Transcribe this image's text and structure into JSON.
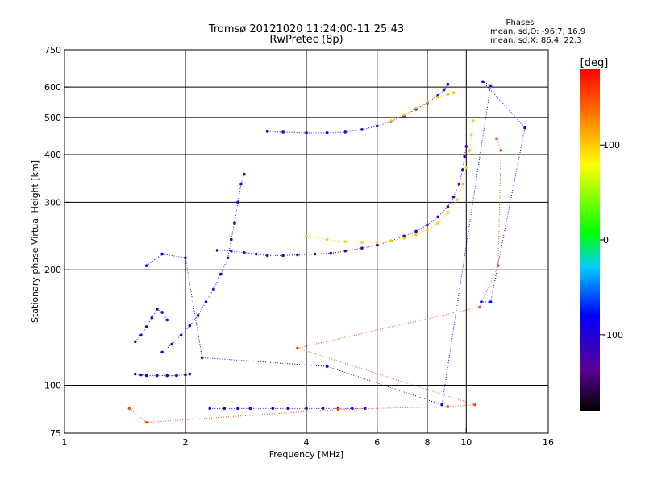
{
  "chart_data": {
    "type": "scatter",
    "title": "Tromsø 20121020 11:24:00-11:25:43",
    "subtitle": "RwPretec (8p)",
    "xlabel": "Frequency [MHz]",
    "ylabel": "Stationary phase Virtual Height [km]",
    "x_scale": "log2",
    "y_scale": "log",
    "xlim": [
      1,
      16
    ],
    "ylim": [
      75,
      750
    ],
    "x_ticks": [
      1,
      2,
      4,
      6,
      8,
      10,
      16
    ],
    "y_ticks": [
      75,
      100,
      200,
      300,
      400,
      500,
      600,
      750
    ],
    "grid": true,
    "stats": {
      "heading": "Phases",
      "o_line": "mean, sd,O:  -96.7, 16.9",
      "x_line": "mean, sd,X:  86.4, 22.3"
    },
    "colorbar": {
      "label": "[deg]",
      "range": [
        -180,
        180
      ],
      "ticks": [
        100,
        0,
        -100
      ]
    },
    "traces": [
      {
        "phase": -100,
        "points": [
          [
            1.5,
            107
          ],
          [
            1.55,
            106.5
          ],
          [
            1.6,
            106
          ],
          [
            1.7,
            106
          ],
          [
            1.8,
            106
          ],
          [
            1.9,
            106
          ],
          [
            2.0,
            106.5
          ],
          [
            2.05,
            107
          ]
        ]
      },
      {
        "phase": -105,
        "points": [
          [
            1.5,
            130
          ],
          [
            1.55,
            135
          ],
          [
            1.6,
            142
          ],
          [
            1.65,
            150
          ],
          [
            1.7,
            158
          ],
          [
            1.75,
            155
          ],
          [
            1.8,
            148
          ]
        ]
      },
      {
        "phase": -100,
        "points": [
          [
            1.75,
            122
          ],
          [
            1.85,
            128
          ],
          [
            1.95,
            135
          ],
          [
            2.05,
            143
          ],
          [
            2.15,
            152
          ],
          [
            2.25,
            165
          ],
          [
            2.35,
            178
          ],
          [
            2.45,
            195
          ],
          [
            2.55,
            215
          ],
          [
            2.6,
            240
          ],
          [
            2.65,
            265
          ],
          [
            2.7,
            300
          ],
          [
            2.75,
            335
          ],
          [
            2.8,
            355
          ]
        ]
      },
      {
        "phase": -115,
        "points": [
          [
            2.4,
            225
          ],
          [
            2.6,
            224
          ],
          [
            2.8,
            222
          ],
          [
            3.0,
            220
          ],
          [
            3.2,
            218
          ],
          [
            3.5,
            218
          ],
          [
            3.8,
            219
          ],
          [
            4.2,
            220
          ],
          [
            4.6,
            221
          ],
          [
            5.0,
            224
          ],
          [
            5.5,
            228
          ],
          [
            6.0,
            232
          ],
          [
            6.5,
            238
          ],
          [
            7.0,
            245
          ],
          [
            7.5,
            252
          ],
          [
            8.0,
            262
          ],
          [
            8.5,
            275
          ],
          [
            9.0,
            292
          ],
          [
            9.3,
            310
          ],
          [
            9.6,
            335
          ],
          [
            9.8,
            365
          ],
          [
            9.9,
            395
          ],
          [
            10.0,
            420
          ]
        ]
      },
      {
        "phase": 100,
        "points": [
          [
            4.0,
            245
          ],
          [
            4.5,
            240
          ],
          [
            5.0,
            237
          ],
          [
            5.5,
            236
          ],
          [
            6.0,
            236
          ],
          [
            6.5,
            238
          ],
          [
            7.0,
            242
          ],
          [
            7.5,
            247
          ],
          [
            8.0,
            254
          ],
          [
            8.5,
            265
          ],
          [
            9.0,
            282
          ],
          [
            9.5,
            305
          ],
          [
            9.8,
            335
          ],
          [
            10.0,
            370
          ],
          [
            10.2,
            410
          ],
          [
            10.3,
            450
          ],
          [
            10.4,
            490
          ]
        ]
      },
      {
        "phase": -100,
        "points": [
          [
            3.2,
            460
          ],
          [
            3.5,
            458
          ],
          [
            4.0,
            456
          ],
          [
            4.5,
            456
          ],
          [
            5.0,
            458
          ],
          [
            5.5,
            465
          ],
          [
            6.0,
            475
          ],
          [
            6.5,
            488
          ],
          [
            7.0,
            505
          ],
          [
            7.5,
            525
          ],
          [
            8.0,
            545
          ],
          [
            8.5,
            570
          ],
          [
            8.8,
            590
          ],
          [
            9.0,
            610
          ]
        ]
      },
      {
        "phase": 105,
        "points": [
          [
            6.5,
            490
          ],
          [
            7.0,
            508
          ],
          [
            7.5,
            528
          ],
          [
            8.0,
            548
          ],
          [
            8.5,
            565
          ],
          [
            9.0,
            575
          ],
          [
            9.3,
            580
          ]
        ]
      },
      {
        "phase": -100,
        "points": [
          [
            2.3,
            87
          ],
          [
            2.5,
            87
          ],
          [
            2.7,
            87
          ],
          [
            2.9,
            87
          ],
          [
            3.3,
            87
          ],
          [
            3.6,
            87
          ],
          [
            4.0,
            87
          ],
          [
            4.4,
            87
          ],
          [
            4.8,
            87
          ],
          [
            5.2,
            87
          ],
          [
            5.6,
            87
          ]
        ]
      },
      {
        "phase": 150,
        "points": [
          [
            1.45,
            87
          ],
          [
            1.6,
            80
          ],
          [
            4.8,
            86.5
          ],
          [
            9.0,
            88
          ],
          [
            10.5,
            89
          ],
          [
            3.8,
            125
          ],
          [
            10.8,
            160
          ],
          [
            12.0,
            205
          ],
          [
            12.2,
            410
          ],
          [
            11.9,
            440
          ]
        ]
      },
      {
        "phase": -80,
        "points": [
          [
            1.6,
            205
          ],
          [
            1.75,
            220
          ],
          [
            2.0,
            215
          ],
          [
            2.2,
            118
          ],
          [
            4.5,
            112
          ],
          [
            8.7,
            89
          ],
          [
            11.5,
            605
          ],
          [
            11.0,
            620
          ],
          [
            14.0,
            470
          ],
          [
            11.5,
            165
          ],
          [
            10.9,
            165
          ]
        ]
      }
    ]
  }
}
